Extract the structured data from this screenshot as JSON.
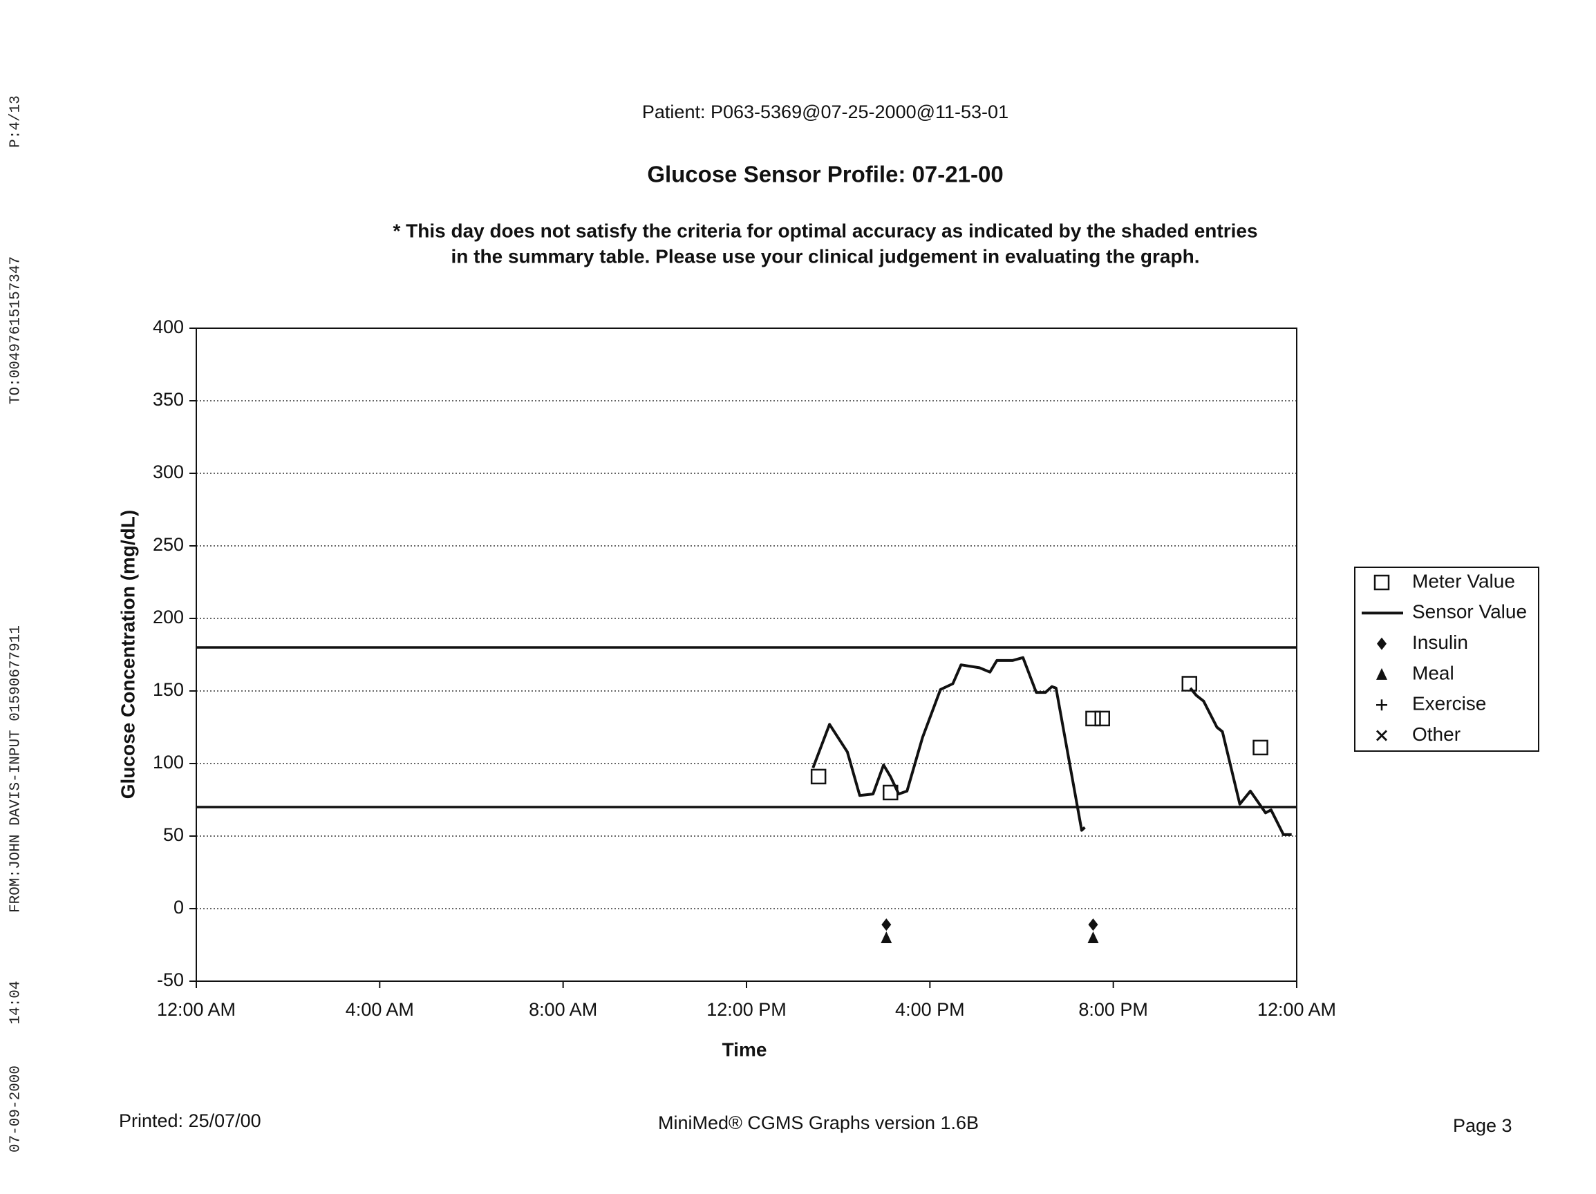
{
  "fax_header": {
    "page": "P:4/13",
    "to": "TO:00497615157347",
    "from": "FROM:JOHN DAVIS-INPUT 01590677911",
    "time": "14:04",
    "date": "07-09-2000"
  },
  "patient": "Patient: P063-5369@07-25-2000@11-53-01",
  "chart_data": {
    "type": "line",
    "title": "Glucose Sensor Profile: 07-21-00",
    "annotations": [
      "* This day does not satisfy the criteria for optimal accuracy as indicated by the shaded entries",
      "in the summary table. Please use your clinical judgement in evaluating the graph."
    ],
    "x_label": "Time",
    "y_label": "Glucose Concentration (mg/dL)",
    "xlim": [
      0,
      24
    ],
    "xticks": [
      {
        "value": 0,
        "label": "12:00 AM"
      },
      {
        "value": 4,
        "label": "4:00 AM"
      },
      {
        "value": 8,
        "label": "8:00 AM"
      },
      {
        "value": 12,
        "label": "12:00 PM"
      },
      {
        "value": 16,
        "label": "4:00 PM"
      },
      {
        "value": 20,
        "label": "8:00 PM"
      },
      {
        "value": 24,
        "label": "12:00 AM"
      }
    ],
    "ylim": [
      -50,
      400
    ],
    "yticks": [
      -50,
      0,
      50,
      100,
      150,
      200,
      250,
      300,
      350,
      400
    ],
    "grid": true,
    "reference_lines": [
      180,
      70
    ],
    "legend_position": "right",
    "series": [
      {
        "name": "Meter Value",
        "color": "#111111",
        "marker": "square",
        "x": [
          13.57,
          15.14,
          19.56,
          19.76,
          21.66,
          23.21
        ],
        "values": [
          91,
          80,
          131,
          131,
          155,
          111
        ]
      },
      {
        "name": "Sensor Value",
        "color": "#111111",
        "marker": "line",
        "x": [
          13.45,
          13.81,
          14.2,
          14.47,
          14.76,
          14.99,
          15.14,
          15.32,
          15.5,
          15.84,
          16.23,
          16.5,
          16.68,
          17.08,
          17.31,
          17.46,
          17.8,
          18.03,
          18.32,
          18.52,
          18.66,
          18.75,
          19.31,
          19.38,
          20.5,
          21.68,
          21.81,
          21.97,
          22.26,
          22.38,
          22.76,
          22.99,
          23.32,
          23.44,
          23.71,
          23.89
        ],
        "values": [
          97,
          127,
          108,
          78,
          79,
          99,
          91,
          79,
          81,
          118,
          151,
          155,
          168,
          166,
          163,
          171,
          171,
          173,
          149,
          149,
          153,
          152,
          54,
          56,
          null,
          152,
          147,
          143,
          125,
          122,
          72,
          81,
          66,
          68,
          51,
          51
        ]
      },
      {
        "name": "Insulin",
        "color": "#111111",
        "marker": "diamond",
        "x": [
          15.05,
          19.56
        ],
        "values": [
          -11,
          -11
        ]
      },
      {
        "name": "Meal",
        "color": "#111111",
        "marker": "triangle",
        "x": [
          15.05,
          19.56
        ],
        "values": [
          -20,
          -20
        ]
      },
      {
        "name": "Exercise",
        "color": "#111111",
        "marker": "plus",
        "x": [],
        "values": []
      },
      {
        "name": "Other",
        "color": "#111111",
        "marker": "cross",
        "x": [],
        "values": []
      }
    ]
  },
  "footer": {
    "printed": "Printed: 25/07/00",
    "software": "MiniMed® CGMS Graphs version 1.6B",
    "page": "Page 3"
  }
}
